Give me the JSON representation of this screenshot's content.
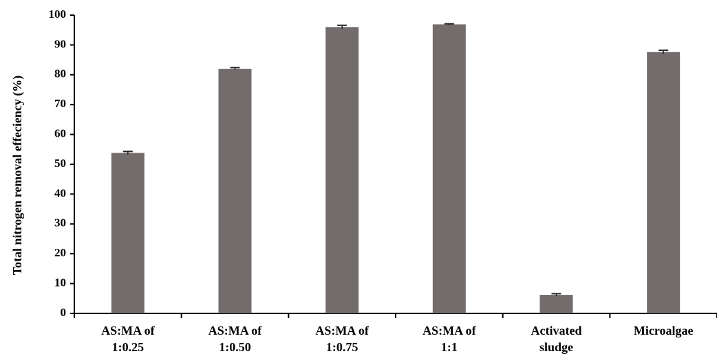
{
  "chart_data": {
    "type": "bar",
    "ylabel": "Total nitrogen removal effeciency (%)",
    "xlabel": "",
    "ylim": [
      0,
      100
    ],
    "yticks": [
      0,
      10,
      20,
      30,
      40,
      50,
      60,
      70,
      80,
      90,
      100
    ],
    "ytick_labels": [
      "0",
      "10",
      "20",
      "30",
      "40",
      "50",
      "60",
      "70",
      "80",
      "90",
      "100"
    ],
    "grid": false,
    "legend": "none",
    "bar_color": "#736c6c",
    "categories": [
      [
        "AS:MA of",
        "1:0.25"
      ],
      [
        "AS:MA of",
        "1:0.50"
      ],
      [
        "AS:MA of",
        "1:0.75"
      ],
      [
        "AS:MA of",
        "1:1"
      ],
      [
        "Activated",
        "sludge"
      ],
      [
        "Microalgae"
      ]
    ],
    "values": [
      53.8,
      82.0,
      96.0,
      96.9,
      6.2,
      87.6
    ],
    "errors": [
      0.5,
      0.4,
      0.6,
      0.2,
      0.4,
      0.6
    ]
  }
}
